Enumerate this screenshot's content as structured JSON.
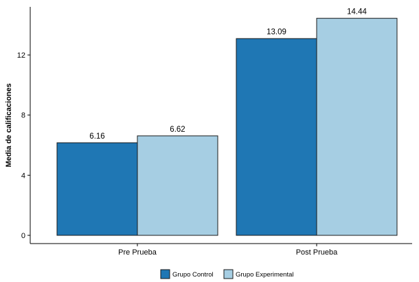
{
  "chart_data": {
    "type": "bar",
    "title": "",
    "xlabel": "",
    "ylabel": "Media de calificaciones",
    "categories": [
      "Pre Prueba",
      "Post Prueba"
    ],
    "series": [
      {
        "name": "Grupo Control",
        "color": "#1f77b4",
        "values": [
          6.16,
          13.09
        ],
        "labels": [
          "6.16",
          "13.09"
        ]
      },
      {
        "name": "Grupo Experimental",
        "color": "#a6cee3",
        "values": [
          6.62,
          14.44
        ],
        "labels": [
          "6.62",
          "14.44"
        ]
      }
    ],
    "yticks": [
      0,
      4,
      8,
      12
    ],
    "ytick_labels": [
      "0",
      "4",
      "8",
      "12"
    ],
    "ylim": [
      0,
      15.2
    ],
    "grid": false,
    "legend_position": "bottom"
  }
}
